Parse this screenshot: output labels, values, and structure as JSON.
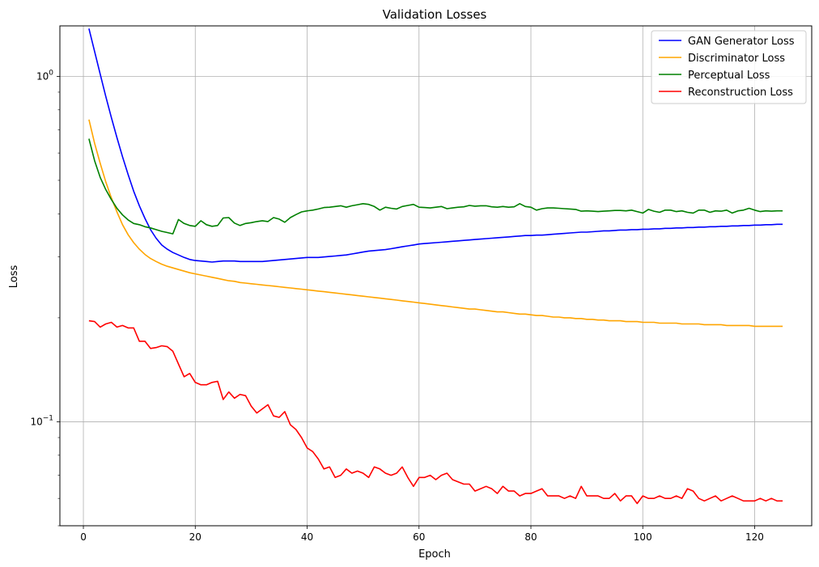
{
  "chart_data": {
    "type": "line",
    "title": "Validation Losses",
    "xlabel": "Epoch",
    "ylabel": "Loss",
    "yscale": "log",
    "xlim": [
      -4.2,
      130.2
    ],
    "ylim": [
      0.05,
      1.4
    ],
    "xticks": [
      0,
      20,
      40,
      60,
      80,
      100,
      120
    ],
    "yticks": [
      {
        "value": 1.0,
        "label_base": "10",
        "label_exp": "0"
      },
      {
        "value": 0.1,
        "label_base": "10",
        "label_exp": "−1"
      }
    ],
    "grid": true,
    "legend_position": "top-right",
    "colors": {
      "GAN Generator Loss": "#0000ff",
      "Discriminator Loss": "#ffa500",
      "Perceptual Loss": "#008000",
      "Reconstruction Loss": "#ff0000"
    },
    "series": [
      {
        "name": "GAN Generator Loss",
        "x": [
          1,
          2,
          3,
          4,
          5,
          6,
          7,
          8,
          9,
          10,
          11,
          12,
          13,
          14,
          15,
          16,
          17,
          18,
          19,
          20,
          21,
          22,
          23,
          24,
          25,
          26,
          27,
          28,
          29,
          30,
          31,
          32,
          33,
          34,
          35,
          36,
          37,
          38,
          39,
          40,
          41,
          42,
          43,
          44,
          45,
          46,
          47,
          48,
          49,
          50,
          51,
          52,
          53,
          54,
          55,
          56,
          57,
          58,
          59,
          60,
          61,
          62,
          63,
          64,
          65,
          66,
          67,
          68,
          69,
          70,
          71,
          72,
          73,
          74,
          75,
          76,
          77,
          78,
          79,
          80,
          81,
          82,
          83,
          84,
          85,
          86,
          87,
          88,
          89,
          90,
          91,
          92,
          93,
          94,
          95,
          96,
          97,
          98,
          99,
          100,
          101,
          102,
          103,
          104,
          105,
          106,
          107,
          108,
          109,
          110,
          111,
          112,
          113,
          114,
          115,
          116,
          117,
          118,
          119,
          120,
          121,
          122,
          123,
          124,
          125
        ],
        "y": [
          1.375,
          1.18,
          1.015,
          0.875,
          0.76,
          0.665,
          0.585,
          0.52,
          0.465,
          0.422,
          0.388,
          0.36,
          0.34,
          0.325,
          0.316,
          0.309,
          0.304,
          0.299,
          0.295,
          0.293,
          0.292,
          0.291,
          0.29,
          0.291,
          0.292,
          0.292,
          0.292,
          0.291,
          0.291,
          0.291,
          0.291,
          0.291,
          0.292,
          0.293,
          0.294,
          0.295,
          0.296,
          0.297,
          0.298,
          0.299,
          0.299,
          0.299,
          0.3,
          0.301,
          0.302,
          0.303,
          0.304,
          0.306,
          0.308,
          0.31,
          0.312,
          0.313,
          0.314,
          0.315,
          0.317,
          0.319,
          0.321,
          0.323,
          0.325,
          0.327,
          0.328,
          0.329,
          0.33,
          0.331,
          0.332,
          0.333,
          0.334,
          0.335,
          0.336,
          0.337,
          0.338,
          0.339,
          0.34,
          0.341,
          0.342,
          0.343,
          0.344,
          0.345,
          0.346,
          0.346,
          0.347,
          0.347,
          0.348,
          0.349,
          0.35,
          0.351,
          0.352,
          0.353,
          0.354,
          0.354,
          0.355,
          0.356,
          0.357,
          0.357,
          0.358,
          0.359,
          0.359,
          0.36,
          0.36,
          0.361,
          0.361,
          0.362,
          0.362,
          0.363,
          0.363,
          0.364,
          0.364,
          0.365,
          0.365,
          0.366,
          0.366,
          0.367,
          0.367,
          0.368,
          0.368,
          0.369,
          0.369,
          0.37,
          0.37,
          0.371,
          0.371,
          0.372,
          0.372,
          0.373,
          0.373
        ]
      },
      {
        "name": "Discriminator Loss",
        "x": [
          1,
          2,
          3,
          4,
          5,
          6,
          7,
          8,
          9,
          10,
          11,
          12,
          13,
          14,
          15,
          16,
          17,
          18,
          19,
          20,
          21,
          22,
          23,
          24,
          25,
          26,
          27,
          28,
          29,
          30,
          31,
          32,
          33,
          34,
          35,
          36,
          37,
          38,
          39,
          40,
          41,
          42,
          43,
          44,
          45,
          46,
          47,
          48,
          49,
          50,
          51,
          52,
          53,
          54,
          55,
          56,
          57,
          58,
          59,
          60,
          61,
          62,
          63,
          64,
          65,
          66,
          67,
          68,
          69,
          70,
          71,
          72,
          73,
          74,
          75,
          76,
          77,
          78,
          79,
          80,
          81,
          82,
          83,
          84,
          85,
          86,
          87,
          88,
          89,
          90,
          91,
          92,
          93,
          94,
          95,
          96,
          97,
          98,
          99,
          100,
          101,
          102,
          103,
          104,
          105,
          106,
          107,
          108,
          109,
          110,
          111,
          112,
          113,
          114,
          115,
          116,
          117,
          118,
          119,
          120,
          121,
          122,
          123,
          124,
          125
        ],
        "y": [
          0.75,
          0.64,
          0.56,
          0.495,
          0.445,
          0.405,
          0.372,
          0.348,
          0.33,
          0.316,
          0.305,
          0.297,
          0.291,
          0.286,
          0.282,
          0.279,
          0.276,
          0.273,
          0.27,
          0.268,
          0.266,
          0.264,
          0.262,
          0.26,
          0.258,
          0.256,
          0.255,
          0.253,
          0.252,
          0.251,
          0.25,
          0.249,
          0.248,
          0.247,
          0.246,
          0.245,
          0.244,
          0.243,
          0.242,
          0.241,
          0.24,
          0.239,
          0.238,
          0.237,
          0.236,
          0.235,
          0.234,
          0.233,
          0.232,
          0.231,
          0.23,
          0.229,
          0.228,
          0.227,
          0.226,
          0.225,
          0.224,
          0.223,
          0.222,
          0.221,
          0.22,
          0.219,
          0.218,
          0.217,
          0.216,
          0.215,
          0.214,
          0.213,
          0.212,
          0.212,
          0.211,
          0.21,
          0.209,
          0.208,
          0.208,
          0.207,
          0.206,
          0.205,
          0.205,
          0.204,
          0.203,
          0.203,
          0.202,
          0.201,
          0.201,
          0.2,
          0.2,
          0.199,
          0.199,
          0.198,
          0.198,
          0.197,
          0.197,
          0.196,
          0.196,
          0.196,
          0.195,
          0.195,
          0.195,
          0.194,
          0.194,
          0.194,
          0.193,
          0.193,
          0.193,
          0.193,
          0.192,
          0.192,
          0.192,
          0.192,
          0.191,
          0.191,
          0.191,
          0.191,
          0.19,
          0.19,
          0.19,
          0.19,
          0.19,
          0.189,
          0.189,
          0.189,
          0.189,
          0.189,
          0.189
        ]
      },
      {
        "name": "Perceptual Loss",
        "x": [
          1,
          2,
          3,
          4,
          5,
          6,
          7,
          8,
          9,
          10,
          11,
          12,
          13,
          14,
          15,
          16,
          17,
          18,
          19,
          20,
          21,
          22,
          23,
          24,
          25,
          26,
          27,
          28,
          29,
          30,
          31,
          32,
          33,
          34,
          35,
          36,
          37,
          38,
          39,
          40,
          41,
          42,
          43,
          44,
          45,
          46,
          47,
          48,
          49,
          50,
          51,
          52,
          53,
          54,
          55,
          56,
          57,
          58,
          59,
          60,
          61,
          62,
          63,
          64,
          65,
          66,
          67,
          68,
          69,
          70,
          71,
          72,
          73,
          74,
          75,
          76,
          77,
          78,
          79,
          80,
          81,
          82,
          83,
          84,
          85,
          86,
          87,
          88,
          89,
          90,
          91,
          92,
          93,
          94,
          95,
          96,
          97,
          98,
          99,
          100,
          101,
          102,
          103,
          104,
          105,
          106,
          107,
          108,
          109,
          110,
          111,
          112,
          113,
          114,
          115,
          116,
          117,
          118,
          119,
          120,
          121,
          122,
          123,
          124,
          125
        ],
        "y": [
          0.66,
          0.57,
          0.51,
          0.47,
          0.44,
          0.415,
          0.397,
          0.384,
          0.375,
          0.372,
          0.367,
          0.364,
          0.36,
          0.356,
          0.353,
          0.35,
          0.385,
          0.375,
          0.37,
          0.368,
          0.382,
          0.372,
          0.368,
          0.37,
          0.389,
          0.39,
          0.376,
          0.37,
          0.375,
          0.377,
          0.38,
          0.382,
          0.38,
          0.39,
          0.386,
          0.378,
          0.39,
          0.398,
          0.405,
          0.408,
          0.41,
          0.413,
          0.417,
          0.418,
          0.42,
          0.422,
          0.418,
          0.422,
          0.425,
          0.428,
          0.426,
          0.42,
          0.41,
          0.418,
          0.415,
          0.413,
          0.42,
          0.423,
          0.426,
          0.418,
          0.417,
          0.416,
          0.418,
          0.42,
          0.414,
          0.416,
          0.418,
          0.419,
          0.423,
          0.421,
          0.422,
          0.422,
          0.419,
          0.418,
          0.42,
          0.418,
          0.419,
          0.428,
          0.42,
          0.418,
          0.41,
          0.414,
          0.416,
          0.416,
          0.415,
          0.414,
          0.413,
          0.412,
          0.407,
          0.408,
          0.407,
          0.406,
          0.407,
          0.408,
          0.409,
          0.409,
          0.408,
          0.41,
          0.406,
          0.402,
          0.412,
          0.407,
          0.404,
          0.41,
          0.41,
          0.406,
          0.408,
          0.404,
          0.402,
          0.41,
          0.41,
          0.404,
          0.408,
          0.407,
          0.41,
          0.402,
          0.408,
          0.41,
          0.415,
          0.41,
          0.406,
          0.408,
          0.407,
          0.408,
          0.408
        ]
      },
      {
        "name": "Reconstruction Loss",
        "x": [
          1,
          2,
          3,
          4,
          5,
          6,
          7,
          8,
          9,
          10,
          11,
          12,
          13,
          14,
          15,
          16,
          17,
          18,
          19,
          20,
          21,
          22,
          23,
          24,
          25,
          26,
          27,
          28,
          29,
          30,
          31,
          32,
          33,
          34,
          35,
          36,
          37,
          38,
          39,
          40,
          41,
          42,
          43,
          44,
          45,
          46,
          47,
          48,
          49,
          50,
          51,
          52,
          53,
          54,
          55,
          56,
          57,
          58,
          59,
          60,
          61,
          62,
          63,
          64,
          65,
          66,
          67,
          68,
          69,
          70,
          71,
          72,
          73,
          74,
          75,
          76,
          77,
          78,
          79,
          80,
          81,
          82,
          83,
          84,
          85,
          86,
          87,
          88,
          89,
          90,
          91,
          92,
          93,
          94,
          95,
          96,
          97,
          98,
          99,
          100,
          101,
          102,
          103,
          104,
          105,
          106,
          107,
          108,
          109,
          110,
          111,
          112,
          113,
          114,
          115,
          116,
          117,
          118,
          119,
          120,
          121,
          122,
          123,
          124,
          125
        ],
        "y": [
          0.196,
          0.195,
          0.188,
          0.192,
          0.194,
          0.188,
          0.19,
          0.187,
          0.187,
          0.171,
          0.171,
          0.163,
          0.164,
          0.166,
          0.165,
          0.16,
          0.147,
          0.135,
          0.138,
          0.13,
          0.128,
          0.128,
          0.13,
          0.131,
          0.116,
          0.122,
          0.117,
          0.12,
          0.119,
          0.111,
          0.106,
          0.109,
          0.112,
          0.104,
          0.103,
          0.107,
          0.098,
          0.095,
          0.09,
          0.084,
          0.082,
          0.078,
          0.073,
          0.074,
          0.069,
          0.07,
          0.073,
          0.071,
          0.072,
          0.071,
          0.069,
          0.074,
          0.073,
          0.071,
          0.07,
          0.071,
          0.074,
          0.069,
          0.065,
          0.069,
          0.069,
          0.07,
          0.068,
          0.07,
          0.071,
          0.068,
          0.067,
          0.066,
          0.066,
          0.063,
          0.064,
          0.065,
          0.064,
          0.062,
          0.065,
          0.063,
          0.063,
          0.061,
          0.062,
          0.062,
          0.063,
          0.064,
          0.061,
          0.061,
          0.061,
          0.06,
          0.061,
          0.06,
          0.065,
          0.061,
          0.061,
          0.061,
          0.06,
          0.06,
          0.062,
          0.059,
          0.061,
          0.061,
          0.058,
          0.061,
          0.06,
          0.06,
          0.061,
          0.06,
          0.06,
          0.061,
          0.06,
          0.064,
          0.063,
          0.06,
          0.059,
          0.06,
          0.061,
          0.059,
          0.06,
          0.061,
          0.06,
          0.059,
          0.059,
          0.059,
          0.06,
          0.059,
          0.06,
          0.059,
          0.059
        ]
      }
    ]
  }
}
